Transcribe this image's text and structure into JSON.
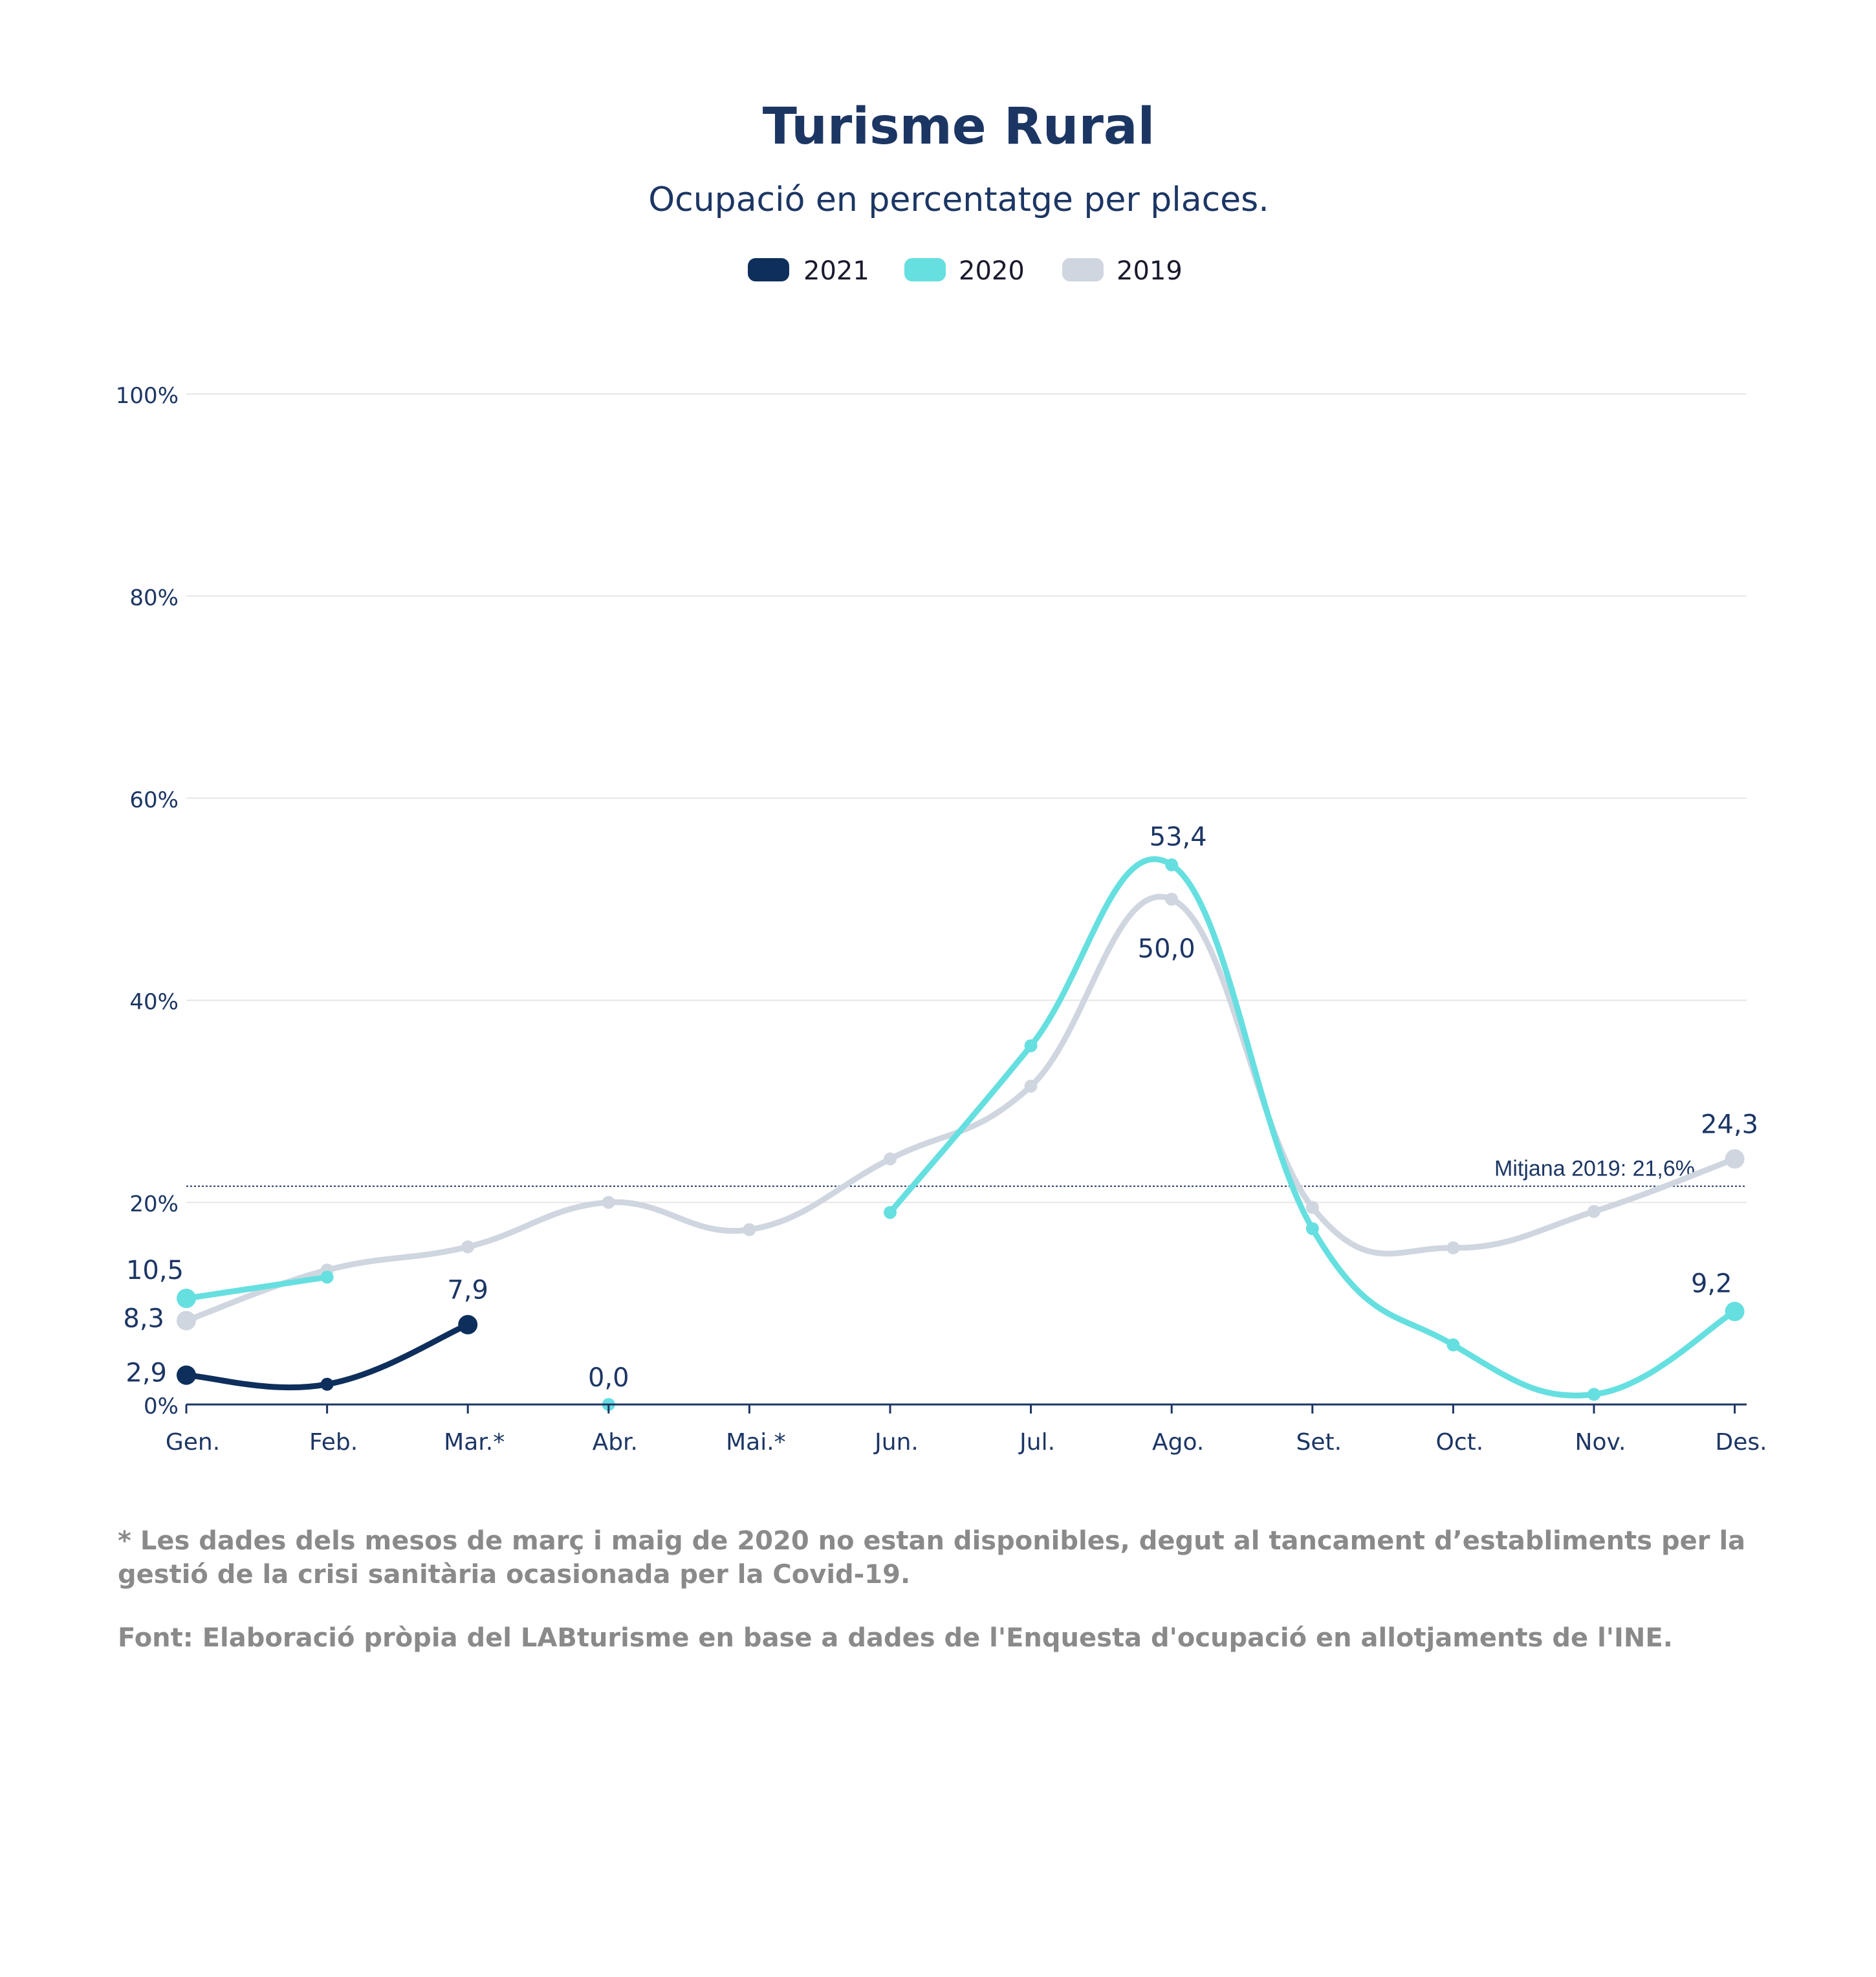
{
  "colors": {
    "2021": "#0e2f5c",
    "2020": "#66dfe0",
    "2019": "#cfd6e0",
    "text": "#1c3664",
    "grid": "#e6e6e6"
  },
  "chart_data": {
    "type": "line",
    "title": "Turisme Rural",
    "subtitle": "Ocupació en percentatge per places.",
    "categories": [
      "Gen.",
      "Feb.",
      "Mar.*",
      "Abr.",
      "Mai.*",
      "Jun.",
      "Jul.",
      "Ago.",
      "Set.",
      "Oct.",
      "Nov.",
      "Des."
    ],
    "ylim": [
      0,
      100
    ],
    "yticks": [
      0,
      20,
      40,
      60,
      80,
      100
    ],
    "ytick_labels": [
      "0%",
      "20%",
      "40%",
      "60%",
      "80%",
      "100%"
    ],
    "grid": true,
    "legend_position": "top-center",
    "series": [
      {
        "name": "2021",
        "values": [
          2.9,
          2.0,
          7.9,
          null,
          null,
          null,
          null,
          null,
          null,
          null,
          null,
          null
        ]
      },
      {
        "name": "2020",
        "values": [
          10.5,
          12.6,
          null,
          0.0,
          null,
          19.0,
          35.5,
          53.4,
          17.4,
          5.9,
          1.0,
          9.2
        ]
      },
      {
        "name": "2019",
        "values": [
          8.3,
          13.3,
          15.6,
          20.0,
          17.3,
          24.3,
          31.5,
          50.0,
          19.5,
          15.5,
          19.1,
          24.3
        ]
      }
    ],
    "data_labels": [
      {
        "series": "2021",
        "index": 0,
        "text": "2,9"
      },
      {
        "series": "2021",
        "index": 2,
        "text": "7,9"
      },
      {
        "series": "2020",
        "index": 0,
        "text": "10,5"
      },
      {
        "series": "2020",
        "index": 3,
        "text": "0,0"
      },
      {
        "series": "2020",
        "index": 7,
        "text": "53,4"
      },
      {
        "series": "2020",
        "index": 11,
        "text": "9,2"
      },
      {
        "series": "2019",
        "index": 0,
        "text": "8,3"
      },
      {
        "series": "2019",
        "index": 7,
        "text": "50,0"
      },
      {
        "series": "2019",
        "index": 11,
        "text": "24,3"
      }
    ],
    "reference_line": {
      "value": 21.6,
      "label": "Mitjana 2019: 21,6%"
    }
  },
  "notes": {
    "footnote": "* Les dades dels mesos de març i maig de 2020 no estan disponibles, degut al tancament d’establiments per la gestió de la crisi sanitària ocasionada per la Covid-19.",
    "source": "Font: Elaboració pròpia del LABturisme en base a dades de l'Enquesta d'ocupació en allotjaments de l'INE."
  }
}
